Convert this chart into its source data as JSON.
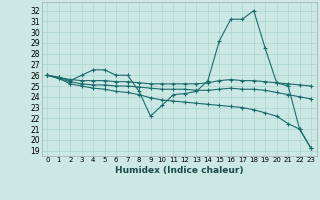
{
  "xlabel": "Humidex (Indice chaleur)",
  "background_color": "#cce8e4",
  "grid_color": "#aad4ce",
  "line_color": "#1a6b6b",
  "xlim": [
    -0.5,
    23.5
  ],
  "ylim": [
    18.5,
    32.8
  ],
  "yticks": [
    19,
    20,
    21,
    22,
    23,
    24,
    25,
    26,
    27,
    28,
    29,
    30,
    31,
    32
  ],
  "xticks": [
    0,
    1,
    2,
    3,
    4,
    5,
    6,
    7,
    8,
    9,
    10,
    11,
    12,
    13,
    14,
    15,
    16,
    17,
    18,
    19,
    20,
    21,
    22,
    23
  ],
  "lines": [
    {
      "x": [
        0,
        1,
        2,
        3,
        4,
        5,
        6,
        7,
        8,
        9,
        10,
        11,
        12,
        13,
        14,
        15,
        16,
        17,
        18,
        19,
        20,
        21,
        22,
        23
      ],
      "y": [
        26,
        25.8,
        25.5,
        26,
        26.5,
        26.5,
        26,
        26,
        24.5,
        22.2,
        23.2,
        24.2,
        24.3,
        24.5,
        25.5,
        29.2,
        31.2,
        31.2,
        32,
        28.5,
        25.3,
        25,
        21,
        19.2
      ]
    },
    {
      "x": [
        0,
        1,
        2,
        3,
        4,
        5,
        6,
        7,
        8,
        9,
        10,
        11,
        12,
        13,
        14,
        15,
        16,
        17,
        18,
        19,
        20,
        21,
        22,
        23
      ],
      "y": [
        26,
        25.8,
        25.6,
        25.5,
        25.5,
        25.5,
        25.4,
        25.4,
        25.3,
        25.2,
        25.2,
        25.2,
        25.2,
        25.2,
        25.3,
        25.5,
        25.6,
        25.5,
        25.5,
        25.4,
        25.3,
        25.2,
        25.1,
        25.0
      ]
    },
    {
      "x": [
        0,
        1,
        2,
        3,
        4,
        5,
        6,
        7,
        8,
        9,
        10,
        11,
        12,
        13,
        14,
        15,
        16,
        17,
        18,
        19,
        20,
        21,
        22,
        23
      ],
      "y": [
        26,
        25.7,
        25.4,
        25.2,
        25.1,
        25.1,
        25.0,
        25.0,
        24.9,
        24.8,
        24.7,
        24.7,
        24.7,
        24.6,
        24.6,
        24.7,
        24.8,
        24.7,
        24.7,
        24.6,
        24.4,
        24.2,
        24.0,
        23.8
      ]
    },
    {
      "x": [
        0,
        1,
        2,
        3,
        4,
        5,
        6,
        7,
        8,
        9,
        10,
        11,
        12,
        13,
        14,
        15,
        16,
        17,
        18,
        19,
        20,
        21,
        22,
        23
      ],
      "y": [
        26,
        25.7,
        25.2,
        25.0,
        24.8,
        24.7,
        24.5,
        24.4,
        24.2,
        23.9,
        23.7,
        23.6,
        23.5,
        23.4,
        23.3,
        23.2,
        23.1,
        23.0,
        22.8,
        22.5,
        22.2,
        21.5,
        21.0,
        19.2
      ]
    }
  ]
}
